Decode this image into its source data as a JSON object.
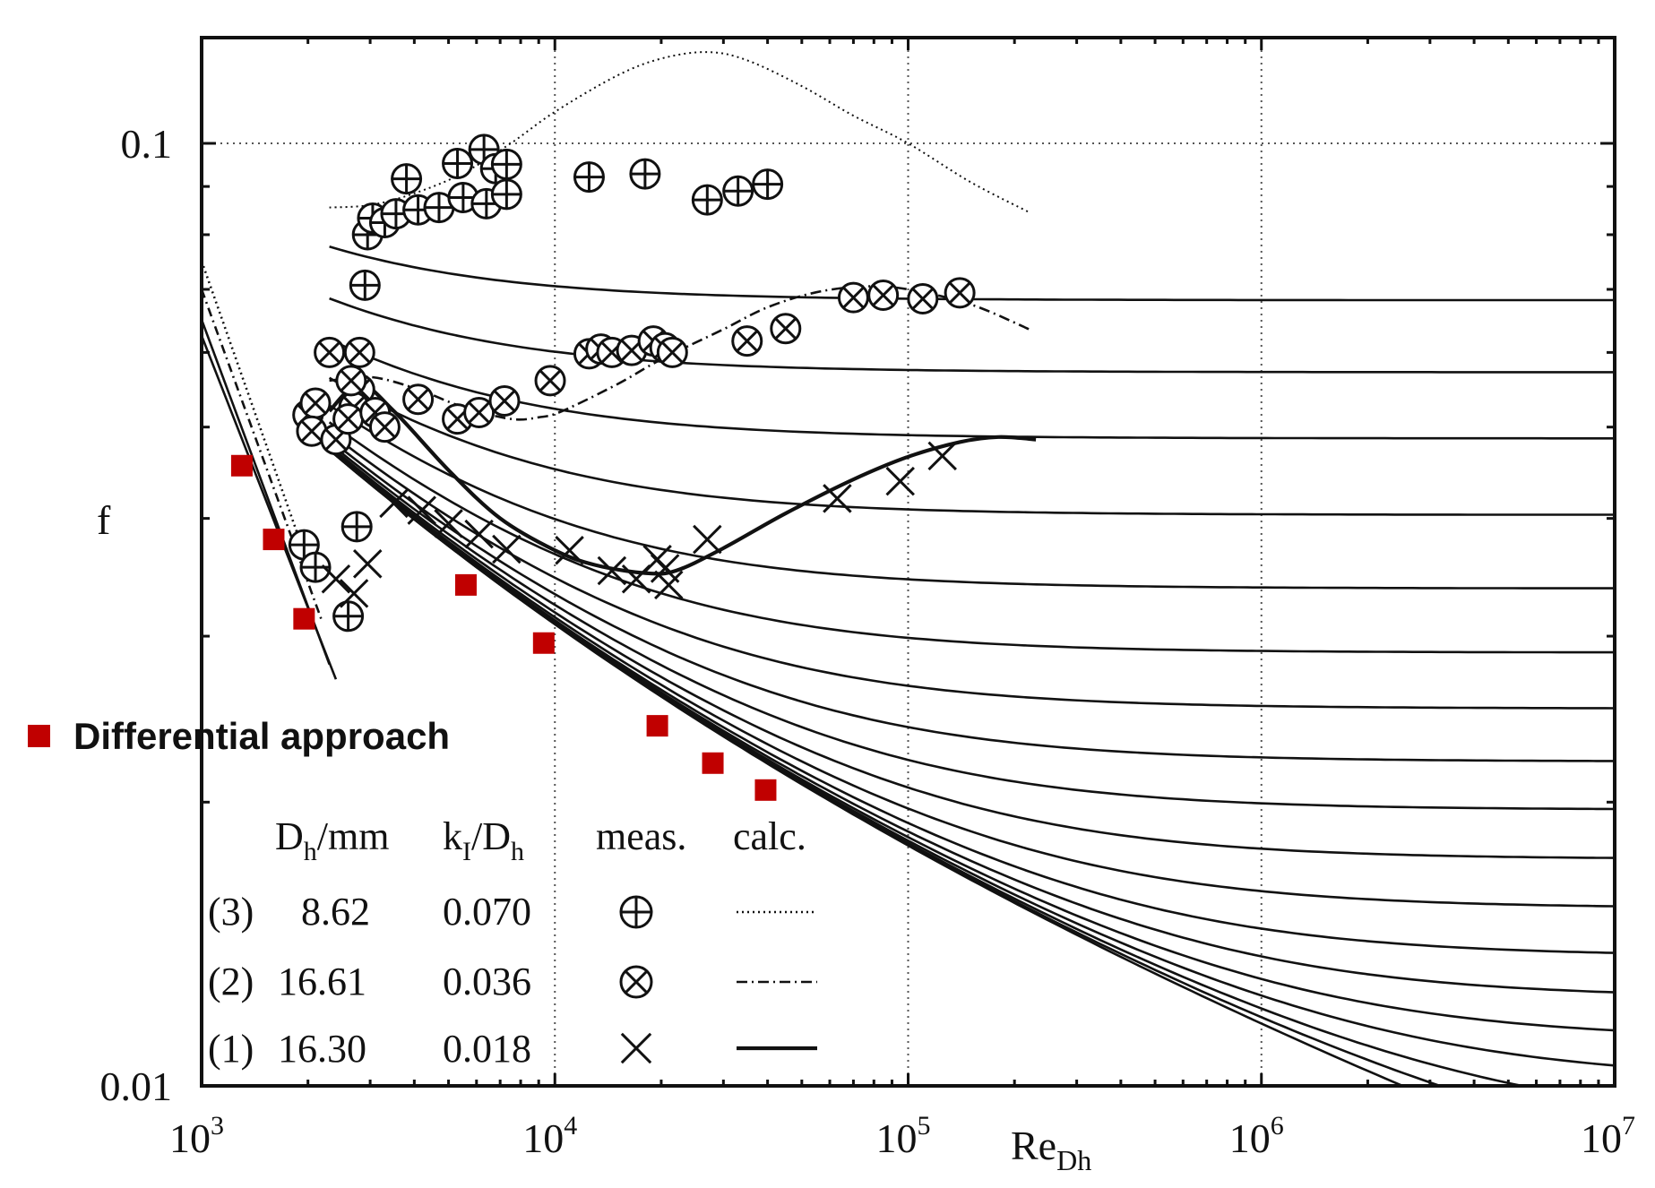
{
  "chart_data": {
    "type": "scatter",
    "title": "",
    "xlabel_main": "Re",
    "xlabel_sub": "Dh",
    "ylabel": "f",
    "x_scale": "log",
    "y_scale": "log",
    "xlim": [
      1000,
      10000000
    ],
    "ylim": [
      0.01,
      0.13
    ],
    "x_ticks": [
      {
        "value": 1000,
        "base": "10",
        "exp": "3"
      },
      {
        "value": 10000,
        "base": "10",
        "exp": "4"
      },
      {
        "value": 100000,
        "base": "10",
        "exp": "5"
      },
      {
        "value": 1000000,
        "base": "10",
        "exp": "6"
      },
      {
        "value": 10000000,
        "base": "10",
        "exp": "7"
      }
    ],
    "y_tick_labels": [
      {
        "value": 0.1,
        "label": "0.1"
      },
      {
        "value": 0.01,
        "label": "0.01"
      }
    ],
    "grid": true,
    "colors": {
      "axis": "#111111",
      "grid": "#555555",
      "differential": "#c00000"
    },
    "differential_approach": {
      "label": "Differential approach",
      "marker": "square",
      "points": [
        {
          "x": 1300,
          "y": 0.0455
        },
        {
          "x": 1600,
          "y": 0.038
        },
        {
          "x": 1950,
          "y": 0.0313
        },
        {
          "x": 5600,
          "y": 0.034
        },
        {
          "x": 9300,
          "y": 0.0295
        },
        {
          "x": 19500,
          "y": 0.0241
        },
        {
          "x": 28000,
          "y": 0.022
        },
        {
          "x": 39500,
          "y": 0.0206
        }
      ]
    },
    "legend": {
      "headers": {
        "dh_base": "D",
        "dh_sub": "h",
        "dh_unit": "/mm",
        "k_base": "k",
        "k_sub": "I",
        "k_slash": "/D",
        "k_sub2": "h",
        "meas": "meas.",
        "calc": "calc."
      },
      "rows": [
        {
          "id": "(3)",
          "dh": "8.62",
          "k_ratio": "0.070",
          "marker": "circle-plus",
          "line": "dotted"
        },
        {
          "id": "(2)",
          "dh": "16.61",
          "k_ratio": "0.036",
          "marker": "circle-x",
          "line": "dash-dot"
        },
        {
          "id": "(1)",
          "dh": "16.30",
          "k_ratio": "0.018",
          "marker": "x",
          "line": "solid"
        }
      ]
    },
    "series": [
      {
        "name": "(3) meas.",
        "marker": "circle-plus",
        "points": [
          {
            "x": 1950,
            "y": 0.0375
          },
          {
            "x": 2100,
            "y": 0.0355
          },
          {
            "x": 2600,
            "y": 0.0315
          },
          {
            "x": 2750,
            "y": 0.0392
          },
          {
            "x": 2900,
            "y": 0.0707
          },
          {
            "x": 2950,
            "y": 0.08
          },
          {
            "x": 3050,
            "y": 0.0833
          },
          {
            "x": 3300,
            "y": 0.0824
          },
          {
            "x": 3550,
            "y": 0.0842
          },
          {
            "x": 3800,
            "y": 0.0917
          },
          {
            "x": 4100,
            "y": 0.085
          },
          {
            "x": 4700,
            "y": 0.0855
          },
          {
            "x": 5300,
            "y": 0.0952
          },
          {
            "x": 5500,
            "y": 0.0876
          },
          {
            "x": 6300,
            "y": 0.0985
          },
          {
            "x": 6400,
            "y": 0.0863
          },
          {
            "x": 6800,
            "y": 0.094
          },
          {
            "x": 7300,
            "y": 0.095
          },
          {
            "x": 7300,
            "y": 0.0883
          },
          {
            "x": 12500,
            "y": 0.0921
          },
          {
            "x": 18000,
            "y": 0.0928
          },
          {
            "x": 27000,
            "y": 0.0871
          },
          {
            "x": 33000,
            "y": 0.089
          },
          {
            "x": 40000,
            "y": 0.0905
          }
        ]
      },
      {
        "name": "(2) meas.",
        "marker": "circle-x",
        "points": [
          {
            "x": 2000,
            "y": 0.0515
          },
          {
            "x": 2100,
            "y": 0.053
          },
          {
            "x": 2050,
            "y": 0.0495
          },
          {
            "x": 2300,
            "y": 0.06
          },
          {
            "x": 2400,
            "y": 0.0485
          },
          {
            "x": 2800,
            "y": 0.06
          },
          {
            "x": 2800,
            "y": 0.0548
          },
          {
            "x": 2700,
            "y": 0.0525
          },
          {
            "x": 2600,
            "y": 0.051
          },
          {
            "x": 3100,
            "y": 0.0518
          },
          {
            "x": 3300,
            "y": 0.05
          },
          {
            "x": 2650,
            "y": 0.056
          },
          {
            "x": 4100,
            "y": 0.0535
          },
          {
            "x": 5300,
            "y": 0.051
          },
          {
            "x": 6100,
            "y": 0.0518
          },
          {
            "x": 7200,
            "y": 0.0533
          },
          {
            "x": 9700,
            "y": 0.056
          },
          {
            "x": 12500,
            "y": 0.0598
          },
          {
            "x": 13500,
            "y": 0.0605
          },
          {
            "x": 14500,
            "y": 0.06
          },
          {
            "x": 16500,
            "y": 0.0603
          },
          {
            "x": 19000,
            "y": 0.0617
          },
          {
            "x": 20500,
            "y": 0.0607
          },
          {
            "x": 21500,
            "y": 0.06
          },
          {
            "x": 35000,
            "y": 0.0617
          },
          {
            "x": 45000,
            "y": 0.0636
          },
          {
            "x": 70000,
            "y": 0.0686
          },
          {
            "x": 85000,
            "y": 0.069
          },
          {
            "x": 110000,
            "y": 0.0684
          },
          {
            "x": 140000,
            "y": 0.0694
          }
        ]
      },
      {
        "name": "(1) meas.",
        "marker": "x",
        "points": [
          {
            "x": 2400,
            "y": 0.0345
          },
          {
            "x": 2700,
            "y": 0.0333
          },
          {
            "x": 2950,
            "y": 0.0358
          },
          {
            "x": 3500,
            "y": 0.0415
          },
          {
            "x": 4200,
            "y": 0.0408
          },
          {
            "x": 5000,
            "y": 0.0395
          },
          {
            "x": 6100,
            "y": 0.0385
          },
          {
            "x": 7300,
            "y": 0.0371
          },
          {
            "x": 11000,
            "y": 0.037
          },
          {
            "x": 14500,
            "y": 0.0352
          },
          {
            "x": 17000,
            "y": 0.0345
          },
          {
            "x": 19500,
            "y": 0.0362
          },
          {
            "x": 20500,
            "y": 0.0354
          },
          {
            "x": 21000,
            "y": 0.034
          },
          {
            "x": 27000,
            "y": 0.038
          },
          {
            "x": 63000,
            "y": 0.042
          },
          {
            "x": 95000,
            "y": 0.0438
          },
          {
            "x": 125000,
            "y": 0.0466
          }
        ]
      }
    ],
    "calc_curves": [
      {
        "name": "(3) calc.",
        "style": "dotted",
        "points": [
          {
            "x": 2300,
            "y": 0.0855
          },
          {
            "x": 3000,
            "y": 0.086
          },
          {
            "x": 4000,
            "y": 0.0885
          },
          {
            "x": 5500,
            "y": 0.093
          },
          {
            "x": 7500,
            "y": 0.1
          },
          {
            "x": 10000,
            "y": 0.108
          },
          {
            "x": 15000,
            "y": 0.118
          },
          {
            "x": 20000,
            "y": 0.123
          },
          {
            "x": 27000,
            "y": 0.125
          },
          {
            "x": 35000,
            "y": 0.1225
          },
          {
            "x": 50000,
            "y": 0.115
          },
          {
            "x": 70000,
            "y": 0.107
          },
          {
            "x": 100000,
            "y": 0.1
          },
          {
            "x": 150000,
            "y": 0.091
          },
          {
            "x": 220000,
            "y": 0.0845
          }
        ]
      },
      {
        "name": "(2) calc.",
        "style": "dash-dot",
        "points": [
          {
            "x": 2300,
            "y": 0.056
          },
          {
            "x": 3000,
            "y": 0.0565
          },
          {
            "x": 4000,
            "y": 0.055
          },
          {
            "x": 5500,
            "y": 0.0525
          },
          {
            "x": 7500,
            "y": 0.051
          },
          {
            "x": 9000,
            "y": 0.0512
          },
          {
            "x": 10500,
            "y": 0.052
          },
          {
            "x": 15000,
            "y": 0.0555
          },
          {
            "x": 20000,
            "y": 0.059
          },
          {
            "x": 30000,
            "y": 0.0635
          },
          {
            "x": 40000,
            "y": 0.067
          },
          {
            "x": 55000,
            "y": 0.0695
          },
          {
            "x": 75000,
            "y": 0.0705
          },
          {
            "x": 100000,
            "y": 0.07
          },
          {
            "x": 150000,
            "y": 0.0675
          },
          {
            "x": 220000,
            "y": 0.0635
          }
        ]
      },
      {
        "name": "(1) calc.",
        "style": "solid-bold",
        "points": [
          {
            "x": 2300,
            "y": 0.052
          },
          {
            "x": 2800,
            "y": 0.0555
          },
          {
            "x": 3500,
            "y": 0.052
          },
          {
            "x": 5000,
            "y": 0.045
          },
          {
            "x": 7000,
            "y": 0.04
          },
          {
            "x": 10000,
            "y": 0.037
          },
          {
            "x": 13000,
            "y": 0.0357
          },
          {
            "x": 18000,
            "y": 0.035
          },
          {
            "x": 22000,
            "y": 0.0352
          },
          {
            "x": 30000,
            "y": 0.0372
          },
          {
            "x": 45000,
            "y": 0.0405
          },
          {
            "x": 70000,
            "y": 0.044
          },
          {
            "x": 100000,
            "y": 0.0465
          },
          {
            "x": 140000,
            "y": 0.0482
          },
          {
            "x": 180000,
            "y": 0.0488
          },
          {
            "x": 230000,
            "y": 0.0485
          }
        ]
      }
    ],
    "laminar_lines": [
      {
        "style": "solid",
        "from": {
          "x": 1000,
          "y": 0.0625
        },
        "to": {
          "x": 2400,
          "y": 0.027
        }
      },
      {
        "style": "solid",
        "from": {
          "x": 1000,
          "y": 0.065
        },
        "to": {
          "x": 2300,
          "y": 0.028
        }
      },
      {
        "style": "dash-dot",
        "from": {
          "x": 1000,
          "y": 0.07
        },
        "to": {
          "x": 2200,
          "y": 0.031
        }
      },
      {
        "style": "dotted",
        "from": {
          "x": 1000,
          "y": 0.075
        },
        "to": {
          "x": 2100,
          "y": 0.034
        }
      }
    ],
    "colebrook_family": {
      "start_re": 2300,
      "end_re": 10000000,
      "relative_roughness": [
        0.045,
        0.03,
        0.02,
        0.012,
        0.007,
        0.0042,
        0.0026,
        0.0016,
        0.001,
        0.0006,
        0.00035,
        0.0002,
        0.00012,
        7e-05,
        4e-05,
        2e-05,
        8e-06,
        0.0
      ]
    },
    "legend_sample_lines": [
      {
        "row": "(3)",
        "style": "dotted"
      },
      {
        "row": "(2)",
        "style": "dash-dot"
      },
      {
        "row": "(1)",
        "style": "solid"
      }
    ]
  }
}
